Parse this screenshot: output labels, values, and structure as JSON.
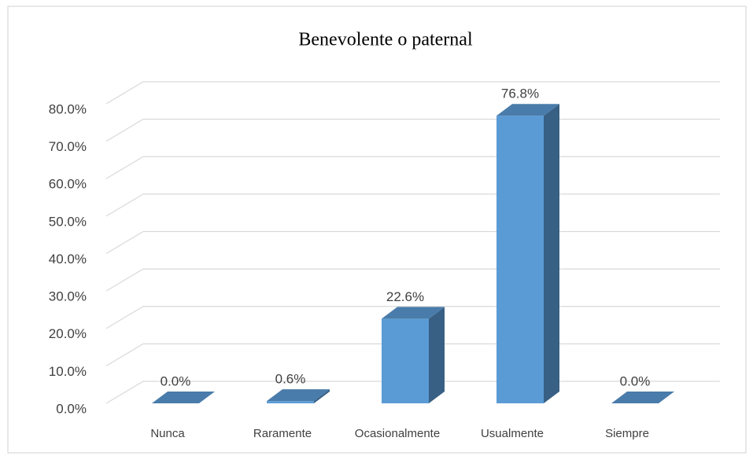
{
  "chart_data": {
    "type": "bar3d",
    "title": "Benevolente o paternal",
    "categories": [
      "Nunca",
      "Raramente",
      "Ocasionalmente",
      "Usualmente",
      "Siempre"
    ],
    "values": [
      0.0,
      0.6,
      22.6,
      76.8,
      0.0
    ],
    "value_labels": [
      "0.0%",
      "0.6%",
      "22.6%",
      "76.8%",
      "0.0%"
    ],
    "color": "#5b9bd5",
    "ylim": [
      0,
      80
    ],
    "yticks": [
      {
        "value": 0,
        "label": "0.0%"
      },
      {
        "value": 10,
        "label": "10.0%"
      },
      {
        "value": 20,
        "label": "20.0%"
      },
      {
        "value": 30,
        "label": "30.0%"
      },
      {
        "value": 40,
        "label": "40.0%"
      },
      {
        "value": 50,
        "label": "50.0%"
      },
      {
        "value": 60,
        "label": "60.0%"
      },
      {
        "value": 70,
        "label": "70.0%"
      },
      {
        "value": 80,
        "label": "80.0%"
      }
    ],
    "grid": true
  }
}
